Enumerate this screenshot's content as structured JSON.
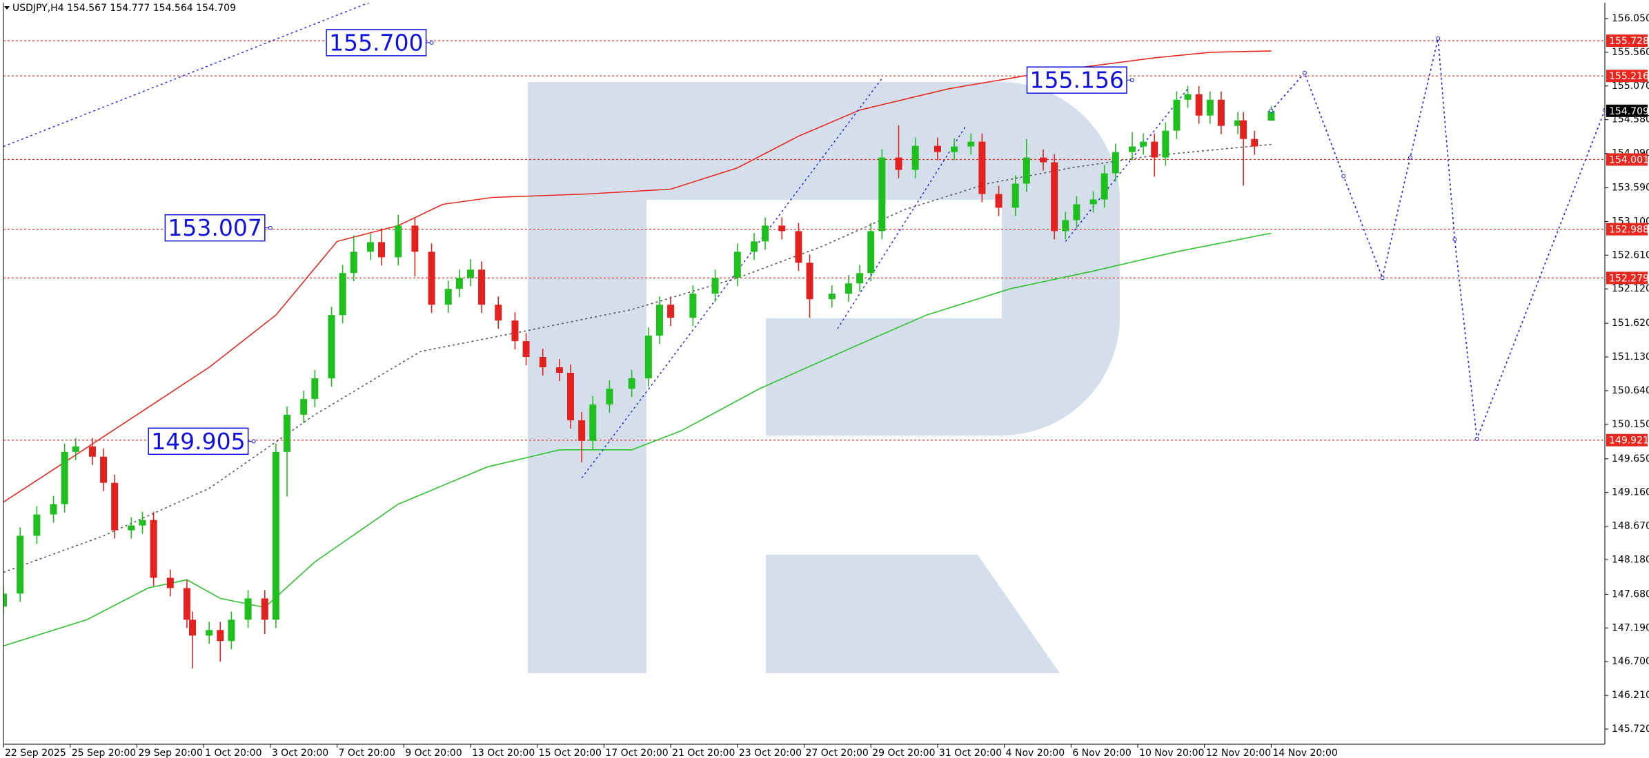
{
  "chart_data": {
    "type": "candlestick",
    "header": "USDJPY,H4  154.567 154.777 154.564 154.709",
    "xlim": [
      0,
      288
    ],
    "ylim": [
      145.5,
      156.28
    ],
    "xticks": [
      {
        "value": 0,
        "label": "22 Sep 2025"
      },
      {
        "value": 12,
        "label": "25 Sep 20:00"
      },
      {
        "value": 24,
        "label": "29 Sep 20:00"
      },
      {
        "value": 36,
        "label": "1 Oct 20:00"
      },
      {
        "value": 48,
        "label": "3 Oct 20:00"
      },
      {
        "value": 60,
        "label": "7 Oct 20:00"
      },
      {
        "value": 72,
        "label": "9 Oct 20:00"
      },
      {
        "value": 84,
        "label": "13 Oct 20:00"
      },
      {
        "value": 96,
        "label": "15 Oct 20:00"
      },
      {
        "value": 108,
        "label": "17 Oct 20:00"
      },
      {
        "value": 120,
        "label": "21 Oct 20:00"
      },
      {
        "value": 132,
        "label": "23 Oct 20:00"
      },
      {
        "value": 144,
        "label": "27 Oct 20:00"
      },
      {
        "value": 156,
        "label": "29 Oct 20:00"
      },
      {
        "value": 168,
        "label": "31 Oct 20:00"
      },
      {
        "value": 180,
        "label": "4 Nov 20:00"
      },
      {
        "value": 192,
        "label": "6 Nov 20:00"
      },
      {
        "value": 204,
        "label": "10 Nov 20:00"
      },
      {
        "value": 216,
        "label": "12 Nov 20:00"
      },
      {
        "value": 228,
        "label": "14 Nov 20:00"
      }
    ],
    "yticks": [
      {
        "value": 156.05,
        "label": "156.050"
      },
      {
        "value": 155.56,
        "label": "155.560"
      },
      {
        "value": 155.07,
        "label": "155.070"
      },
      {
        "value": 154.58,
        "label": "154.580"
      },
      {
        "value": 154.09,
        "label": "154.090"
      },
      {
        "value": 153.59,
        "label": "153.590"
      },
      {
        "value": 153.1,
        "label": "153.100"
      },
      {
        "value": 152.61,
        "label": "152.610"
      },
      {
        "value": 152.12,
        "label": "152.120"
      },
      {
        "value": 151.62,
        "label": "151.620"
      },
      {
        "value": 151.13,
        "label": "151.130"
      },
      {
        "value": 150.64,
        "label": "150.640"
      },
      {
        "value": 150.15,
        "label": "150.150"
      },
      {
        "value": 149.65,
        "label": "149.650"
      },
      {
        "value": 149.16,
        "label": "149.160"
      },
      {
        "value": 148.67,
        "label": "148.670"
      },
      {
        "value": 148.18,
        "label": "148.180"
      },
      {
        "value": 147.68,
        "label": "147.680"
      },
      {
        "value": 147.19,
        "label": "147.190"
      },
      {
        "value": 146.7,
        "label": "146.700"
      },
      {
        "value": 146.21,
        "label": "146.210"
      },
      {
        "value": 145.72,
        "label": "145.720"
      }
    ],
    "up_color": "#1fbf1f",
    "down_color": "#e3211f",
    "x": [
      0,
      3,
      6,
      9,
      11,
      13,
      16,
      18,
      20,
      23,
      25,
      27,
      30,
      33,
      34,
      37,
      39,
      41,
      44,
      47,
      49,
      51,
      54,
      56,
      59,
      61,
      63,
      66,
      68,
      71,
      74,
      77,
      80,
      82,
      84,
      86,
      89,
      92,
      94,
      97,
      100,
      102,
      104,
      106,
      109,
      113,
      116,
      118,
      120,
      124,
      128,
      132,
      135,
      137,
      140,
      143,
      145,
      149,
      152,
      154,
      156,
      158,
      161,
      164,
      168,
      171,
      174,
      176,
      179,
      182,
      184,
      187,
      189,
      191,
      193,
      196,
      198,
      200,
      203,
      205,
      207,
      209,
      211,
      213,
      215,
      217,
      219,
      222,
      223,
      225,
      228
    ],
    "open": [
      147.5,
      147.69,
      148.53,
      148.84,
      148.99,
      149.75,
      149.83,
      149.68,
      149.3,
      148.61,
      148.68,
      148.76,
      147.92,
      147.77,
      147.31,
      147.08,
      147.16,
      147.0,
      147.31,
      147.62,
      147.31,
      149.75,
      150.29,
      150.52,
      150.82,
      151.74,
      152.35,
      152.66,
      152.8,
      152.58,
      153.04,
      152.66,
      151.89,
      152.12,
      152.28,
      152.4,
      151.89,
      151.66,
      151.36,
      151.13,
      150.98,
      150.9,
      150.21,
      149.91,
      150.44,
      150.67,
      150.82,
      151.44,
      151.89,
      151.7,
      152.05,
      152.28,
      152.66,
      152.81,
      153.04,
      152.96,
      152.5,
      151.97,
      152.05,
      152.2,
      152.35,
      152.96,
      154.03,
      153.85,
      154.2,
      154.11,
      154.19,
      154.26,
      153.5,
      153.3,
      153.65,
      154.03,
      153.96,
      152.96,
      153.12,
      153.35,
      153.42,
      153.8,
      154.11,
      154.19,
      154.26,
      154.03,
      154.42,
      154.87,
      154.95,
      154.64,
      154.87,
      154.49,
      154.57,
      154.3,
      154.567
    ],
    "high": [
      147.81,
      148.65,
      148.96,
      149.11,
      149.87,
      149.95,
      149.95,
      149.8,
      149.42,
      148.8,
      148.88,
      148.88,
      148.04,
      147.89,
      147.43,
      147.28,
      147.28,
      147.43,
      147.74,
      147.74,
      149.87,
      150.41,
      150.64,
      150.94,
      151.86,
      152.47,
      152.9,
      152.92,
      153.0,
      153.2,
      153.16,
      152.78,
      152.24,
      152.4,
      152.55,
      152.52,
      152.01,
      151.78,
      151.48,
      151.25,
      151.1,
      151.02,
      150.33,
      150.56,
      150.79,
      150.94,
      151.56,
      152.01,
      152.01,
      152.17,
      152.4,
      152.78,
      152.93,
      153.16,
      153.16,
      153.08,
      152.62,
      152.17,
      152.32,
      152.47,
      153.08,
      154.15,
      154.5,
      154.32,
      154.32,
      154.31,
      154.38,
      154.38,
      153.62,
      153.77,
      154.3,
      154.15,
      154.08,
      153.24,
      153.47,
      153.54,
      153.92,
      154.23,
      154.4,
      154.38,
      154.38,
      154.54,
      154.99,
      155.07,
      155.07,
      154.99,
      154.99,
      154.69,
      154.69,
      154.42,
      154.777
    ],
    "low": [
      147.38,
      147.57,
      148.41,
      148.72,
      148.87,
      149.63,
      149.56,
      149.18,
      148.49,
      148.49,
      148.56,
      147.8,
      147.65,
      147.19,
      146.6,
      146.96,
      146.7,
      146.88,
      147.19,
      147.1,
      147.19,
      149.1,
      150.17,
      150.4,
      150.7,
      151.62,
      152.23,
      152.54,
      152.46,
      152.46,
      152.3,
      151.77,
      151.77,
      152.0,
      152.16,
      151.77,
      151.54,
      151.24,
      151.01,
      150.86,
      150.78,
      150.09,
      149.6,
      149.79,
      150.32,
      150.55,
      150.7,
      151.32,
      151.58,
      151.58,
      151.93,
      152.16,
      152.54,
      152.69,
      152.84,
      152.38,
      151.7,
      151.85,
      151.93,
      152.08,
      152.23,
      152.84,
      153.73,
      153.73,
      153.99,
      153.99,
      154.07,
      153.38,
      153.18,
      153.18,
      153.53,
      153.84,
      152.84,
      152.84,
      153.0,
      153.23,
      153.3,
      153.68,
      153.99,
      154.07,
      153.75,
      153.91,
      154.3,
      154.75,
      154.52,
      154.52,
      154.37,
      154.37,
      153.62,
      154.07,
      154.564
    ],
    "close": [
      147.69,
      148.53,
      148.84,
      148.99,
      149.75,
      149.83,
      149.68,
      149.3,
      148.61,
      148.68,
      148.76,
      147.92,
      147.77,
      147.31,
      147.08,
      147.16,
      147.0,
      147.31,
      147.62,
      147.31,
      149.75,
      150.29,
      150.52,
      150.82,
      151.74,
      152.35,
      152.66,
      152.8,
      152.58,
      153.04,
      152.66,
      151.89,
      152.12,
      152.28,
      152.4,
      151.89,
      151.66,
      151.36,
      151.13,
      150.98,
      150.9,
      150.21,
      149.91,
      150.44,
      150.67,
      150.82,
      151.44,
      151.89,
      151.7,
      152.05,
      152.28,
      152.66,
      152.81,
      153.04,
      152.96,
      152.5,
      151.97,
      152.05,
      152.2,
      152.35,
      152.96,
      154.03,
      153.85,
      154.2,
      154.11,
      154.19,
      154.26,
      153.5,
      153.3,
      153.65,
      154.03,
      153.96,
      152.96,
      153.12,
      153.35,
      153.42,
      153.8,
      154.11,
      154.19,
      154.26,
      154.03,
      154.42,
      154.87,
      154.95,
      154.64,
      154.87,
      154.49,
      154.57,
      154.3,
      154.19,
      154.709
    ],
    "lines": [
      {
        "color": "#e8281e",
        "dash": "none",
        "x": [
          0,
          11,
          24,
          37,
          49,
          60,
          71,
          79,
          88,
          105,
          120,
          132,
          143,
          154,
          170,
          189,
          207,
          217,
          228
        ],
        "values": [
          149.02,
          149.6,
          150.29,
          150.98,
          151.74,
          152.81,
          153.04,
          153.35,
          153.45,
          153.5,
          153.57,
          153.88,
          154.34,
          154.72,
          155.03,
          155.29,
          155.48,
          155.56,
          155.58
        ]
      },
      {
        "color": "#2ec22e",
        "dash": "none",
        "x": [
          0,
          15,
          26,
          33,
          39,
          47,
          56,
          71,
          87,
          100,
          113,
          122,
          136,
          151,
          166,
          181,
          196,
          211,
          228
        ],
        "values": [
          146.93,
          147.31,
          147.77,
          147.89,
          147.62,
          147.49,
          148.15,
          148.99,
          149.53,
          149.78,
          149.78,
          150.06,
          150.67,
          151.21,
          151.74,
          152.12,
          152.38,
          152.66,
          152.93
        ]
      },
      {
        "color": "#555555",
        "dash": "3 4",
        "x": [
          0,
          18,
          37,
          56,
          75,
          94,
          113,
          132,
          147,
          162,
          177,
          192,
          207,
          228
        ],
        "values": [
          148.0,
          148.53,
          149.22,
          150.29,
          151.21,
          151.51,
          151.82,
          152.28,
          152.73,
          153.27,
          153.65,
          153.88,
          154.06,
          154.22
        ]
      }
    ],
    "trend_lines": [
      {
        "x": [
          0,
          66
        ],
        "values": [
          154.19,
          156.29
        ]
      },
      {
        "x": [
          104,
          158
        ],
        "values": [
          149.37,
          155.18
        ]
      },
      {
        "x": [
          150,
          173
        ],
        "values": [
          151.54,
          154.48
        ]
      },
      {
        "x": [
          191,
          213
        ],
        "values": [
          152.81,
          155.03
        ]
      }
    ],
    "forecast": {
      "color": "#1a1aff",
      "x": [
        228,
        234,
        241,
        248,
        253,
        258,
        261,
        265,
        288
      ],
      "values": [
        154.71,
        155.26,
        153.76,
        152.28,
        154.03,
        155.76,
        152.84,
        149.94,
        154.72
      ]
    },
    "levels_color": "#e8281e",
    "levels": [
      {
        "value": 155.728,
        "label": "155.728"
      },
      {
        "value": 155.216,
        "label": "155.216"
      },
      {
        "value": 154.001,
        "label": "154.001"
      },
      {
        "value": 152.988,
        "label": "152.988"
      },
      {
        "value": 152.279,
        "label": "152.279"
      },
      {
        "value": 149.921,
        "label": "149.921"
      }
    ],
    "price_tag": {
      "value": 154.709,
      "label": "154.709"
    },
    "annotations": [
      {
        "x": 77,
        "y": 155.7,
        "label": "155.700"
      },
      {
        "x": 203,
        "y": 155.156,
        "label": "155.156"
      },
      {
        "x": 48,
        "y": 153.007,
        "label": "153.007"
      },
      {
        "x": 45,
        "y": 149.905,
        "label": "149.905"
      }
    ]
  }
}
